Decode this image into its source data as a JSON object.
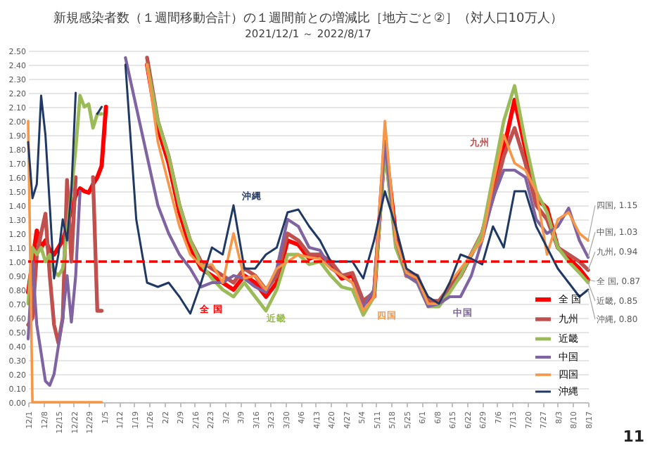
{
  "chart_data": {
    "type": "line",
    "title": "新規感染者数（１週間移動合計）の１週間前との増減比［地方ごと②］（対人口10万人）",
    "subtitle": "2021/12/1 ～ 2022/8/17",
    "x": [
      "2021-12-01",
      "2021-12-03",
      "2021-12-05",
      "2021-12-07",
      "2021-12-09",
      "2021-12-11",
      "2021-12-13",
      "2021-12-15",
      "2021-12-17",
      "2021-12-19",
      "2021-12-21",
      "2021-12-23",
      "2021-12-25",
      "2021-12-27",
      "2021-12-29",
      "2021-12-31",
      "2022-01-02",
      "2022-01-04",
      "2022-01-06",
      "2022-01-08",
      "2022-01-10",
      "2022-01-15",
      "2022-01-20",
      "2022-01-25",
      "2022-01-30",
      "2022-02-04",
      "2022-02-09",
      "2022-02-14",
      "2022-02-19",
      "2022-02-24",
      "2022-03-01",
      "2022-03-06",
      "2022-03-11",
      "2022-03-16",
      "2022-03-21",
      "2022-03-26",
      "2022-03-31",
      "2022-04-05",
      "2022-04-10",
      "2022-04-15",
      "2022-04-20",
      "2022-04-25",
      "2022-04-30",
      "2022-05-05",
      "2022-05-10",
      "2022-05-15",
      "2022-05-20",
      "2022-05-25",
      "2022-05-30",
      "2022-06-04",
      "2022-06-09",
      "2022-06-14",
      "2022-06-19",
      "2022-06-24",
      "2022-06-29",
      "2022-07-04",
      "2022-07-09",
      "2022-07-14",
      "2022-07-19",
      "2022-07-24",
      "2022-07-29",
      "2022-08-03",
      "2022-08-08",
      "2022-08-13",
      "2022-08-17"
    ],
    "series": [
      {
        "name": "全 国",
        "color": "#ff0000",
        "values": [
          0.78,
          1.0,
          1.22,
          1.1,
          1.15,
          1.08,
          1.05,
          1.1,
          1.15,
          1.25,
          1.38,
          1.47,
          1.52,
          1.5,
          1.49,
          1.55,
          1.6,
          1.68,
          2.1,
          null,
          null,
          null,
          null,
          2.4,
          1.95,
          1.7,
          1.35,
          1.1,
          0.95,
          0.9,
          0.85,
          0.8,
          0.9,
          0.85,
          0.75,
          0.85,
          1.15,
          1.12,
          1.02,
          1.05,
          0.98,
          0.88,
          0.9,
          0.7,
          0.75,
          1.85,
          1.2,
          0.9,
          0.88,
          0.7,
          0.7,
          0.8,
          0.9,
          1.05,
          1.2,
          1.5,
          1.8,
          2.15,
          1.8,
          1.45,
          1.38,
          1.1,
          1.02,
          0.95,
          0.87
        ]
      },
      {
        "name": "九州",
        "color": "#c0504d",
        "values": [
          0.55,
          0.6,
          1.05,
          1.2,
          1.34,
          0.9,
          0.55,
          0.42,
          0.6,
          1.58,
          1.0,
          1.6,
          null,
          null,
          null,
          1.6,
          0.65,
          0.65,
          null,
          null,
          null,
          null,
          null,
          2.45,
          2.0,
          1.75,
          1.4,
          1.15,
          1.0,
          0.95,
          0.9,
          0.85,
          0.95,
          0.9,
          0.8,
          0.9,
          1.2,
          1.15,
          1.05,
          1.05,
          1.0,
          0.9,
          0.92,
          0.72,
          0.78,
          1.8,
          1.15,
          0.92,
          0.9,
          0.72,
          0.72,
          0.82,
          0.92,
          1.05,
          1.2,
          1.45,
          1.75,
          1.95,
          1.7,
          1.4,
          1.3,
          1.1,
          1.05,
          1.0,
          0.94
        ]
      },
      {
        "name": "近畿",
        "color": "#9bbb59",
        "values": [
          0.7,
          1.1,
          1.05,
          1.1,
          1.0,
          1.05,
          0.93,
          0.9,
          0.95,
          1.2,
          1.5,
          1.8,
          2.18,
          2.1,
          2.12,
          1.95,
          2.05,
          2.05,
          null,
          null,
          null,
          null,
          null,
          2.4,
          2.0,
          1.75,
          1.4,
          1.15,
          0.98,
          0.88,
          0.8,
          0.75,
          0.85,
          0.75,
          0.65,
          0.8,
          1.05,
          1.05,
          0.98,
          1.0,
          0.9,
          0.82,
          0.8,
          0.62,
          0.75,
          1.8,
          1.1,
          0.9,
          0.85,
          0.68,
          0.68,
          0.78,
          0.9,
          1.05,
          1.2,
          1.6,
          2.0,
          2.25,
          1.85,
          1.5,
          1.35,
          1.1,
          1.0,
          0.92,
          0.85
        ]
      },
      {
        "name": "中国",
        "color": "#8064a2",
        "values": [
          0.45,
          1.0,
          0.55,
          0.35,
          0.15,
          0.12,
          0.2,
          0.4,
          0.6,
          0.9,
          0.57,
          0.9,
          1.5,
          null,
          null,
          null,
          null,
          null,
          null,
          null,
          null,
          2.45,
          2.1,
          1.75,
          1.4,
          1.2,
          1.05,
          0.95,
          0.82,
          0.85,
          0.85,
          0.9,
          0.88,
          0.82,
          0.78,
          0.95,
          1.3,
          1.25,
          1.1,
          1.08,
          0.95,
          0.9,
          0.85,
          0.68,
          0.8,
          1.85,
          1.15,
          0.9,
          0.85,
          0.68,
          0.7,
          0.75,
          0.75,
          0.9,
          1.15,
          1.45,
          1.65,
          1.65,
          1.6,
          1.3,
          1.2,
          1.25,
          1.38,
          1.15,
          1.03
        ]
      },
      {
        "name": "四国",
        "color": "#f79646",
        "values": [
          2.0,
          0,
          0,
          0,
          0,
          0,
          0,
          0,
          0,
          0,
          0,
          0,
          0,
          0,
          0,
          0,
          0,
          0,
          null,
          null,
          null,
          null,
          null,
          2.4,
          1.85,
          1.55,
          1.25,
          1.05,
          0.97,
          0.98,
          0.85,
          1.2,
          0.88,
          0.9,
          0.8,
          0.95,
          1.0,
          1.05,
          1.03,
          1.02,
          0.95,
          0.9,
          0.85,
          0.65,
          0.75,
          2.0,
          1.15,
          0.92,
          0.88,
          0.7,
          0.7,
          0.85,
          0.95,
          1.05,
          1.15,
          1.55,
          1.9,
          1.7,
          1.65,
          1.5,
          1.05,
          1.3,
          1.35,
          1.2,
          1.15
        ]
      },
      {
        "name": "沖縄",
        "color": "#1f3864",
        "values": [
          1.85,
          1.45,
          1.55,
          2.18,
          1.9,
          1.4,
          0.88,
          1.05,
          1.3,
          1.15,
          1.5,
          2.2,
          null,
          null,
          null,
          null,
          2.05,
          2.1,
          null,
          null,
          null,
          2.4,
          1.3,
          0.85,
          0.82,
          0.85,
          0.75,
          0.63,
          0.85,
          1.1,
          1.05,
          1.4,
          0.95,
          0.95,
          1.05,
          1.1,
          1.35,
          1.37,
          1.25,
          1.15,
          1.0,
          1.0,
          1.0,
          0.88,
          1.15,
          1.5,
          1.25,
          0.95,
          0.9,
          0.75,
          0.7,
          0.85,
          1.05,
          1.02,
          0.98,
          1.25,
          1.1,
          1.5,
          1.5,
          1.25,
          1.1,
          0.95,
          0.85,
          0.75,
          0.8
        ]
      }
    ],
    "xlim": [
      "2021-12-01",
      "2022-08-17"
    ],
    "ylim": [
      0,
      2.5
    ],
    "xticks": [
      {
        "value": "2021-12-01",
        "label": "12/1"
      },
      {
        "value": "2021-12-08",
        "label": "12/8"
      },
      {
        "value": "2021-12-15",
        "label": "12/15"
      },
      {
        "value": "2021-12-22",
        "label": "12/22"
      },
      {
        "value": "2021-12-29",
        "label": "12/29"
      },
      {
        "value": "2022-01-05",
        "label": "1/5"
      },
      {
        "value": "2022-01-12",
        "label": "1/12"
      },
      {
        "value": "2022-01-19",
        "label": "1/19"
      },
      {
        "value": "2022-01-26",
        "label": "1/26"
      },
      {
        "value": "2022-02-02",
        "label": "2/2"
      },
      {
        "value": "2022-02-09",
        "label": "2/9"
      },
      {
        "value": "2022-02-16",
        "label": "2/16"
      },
      {
        "value": "2022-02-23",
        "label": "2/23"
      },
      {
        "value": "2022-03-02",
        "label": "3/2"
      },
      {
        "value": "2022-03-09",
        "label": "3/9"
      },
      {
        "value": "2022-03-16",
        "label": "3/16"
      },
      {
        "value": "2022-03-23",
        "label": "3/23"
      },
      {
        "value": "2022-03-30",
        "label": "3/30"
      },
      {
        "value": "2022-04-06",
        "label": "4/6"
      },
      {
        "value": "2022-04-13",
        "label": "4/13"
      },
      {
        "value": "2022-04-20",
        "label": "4/20"
      },
      {
        "value": "2022-04-27",
        "label": "4/27"
      },
      {
        "value": "2022-05-04",
        "label": "5/4"
      },
      {
        "value": "2022-05-11",
        "label": "5/11"
      },
      {
        "value": "2022-05-18",
        "label": "5/18"
      },
      {
        "value": "2022-05-25",
        "label": "5/25"
      },
      {
        "value": "2022-06-01",
        "label": "6/1"
      },
      {
        "value": "2022-06-08",
        "label": "6/8"
      },
      {
        "value": "2022-06-15",
        "label": "6/15"
      },
      {
        "value": "2022-06-22",
        "label": "6/22"
      },
      {
        "value": "2022-06-29",
        "label": "6/29"
      },
      {
        "value": "2022-07-06",
        "label": "7/6"
      },
      {
        "value": "2022-07-13",
        "label": "7/13"
      },
      {
        "value": "2022-07-20",
        "label": "7/20"
      },
      {
        "value": "2022-07-27",
        "label": "7/27"
      },
      {
        "value": "2022-08-03",
        "label": "8/3"
      },
      {
        "value": "2022-08-10",
        "label": "8/10"
      },
      {
        "value": "2022-08-17",
        "label": "8/17"
      }
    ],
    "yticks": [
      {
        "value": 0,
        "label": "0.00"
      },
      {
        "value": 0.1,
        "label": "0.10"
      },
      {
        "value": 0.2,
        "label": "0.20"
      },
      {
        "value": 0.3,
        "label": "0.30"
      },
      {
        "value": 0.4,
        "label": "0.40"
      },
      {
        "value": 0.5,
        "label": "0.50"
      },
      {
        "value": 0.6,
        "label": "0.60"
      },
      {
        "value": 0.7,
        "label": "0.70"
      },
      {
        "value": 0.8,
        "label": "0.80"
      },
      {
        "value": 0.9,
        "label": "0.90"
      },
      {
        "value": 1.0,
        "label": "1.00"
      },
      {
        "value": 1.1,
        "label": "1.10"
      },
      {
        "value": 1.2,
        "label": "1.20"
      },
      {
        "value": 1.3,
        "label": "1.30"
      },
      {
        "value": 1.4,
        "label": "1.40"
      },
      {
        "value": 1.5,
        "label": "1.50"
      },
      {
        "value": 1.6,
        "label": "1.60"
      },
      {
        "value": 1.7,
        "label": "1.70"
      },
      {
        "value": 1.8,
        "label": "1.80"
      },
      {
        "value": 1.9,
        "label": "1.90"
      },
      {
        "value": 2.0,
        "label": "2.00"
      },
      {
        "value": 2.1,
        "label": "2.10"
      },
      {
        "value": 2.2,
        "label": "2.20"
      },
      {
        "value": 2.3,
        "label": "2.30"
      },
      {
        "value": 2.4,
        "label": "2.40"
      },
      {
        "value": 2.5,
        "label": "2.50"
      }
    ],
    "ref_lines": [
      {
        "axis": "y",
        "value": 1.0,
        "color": "#ff0000",
        "line_style": "dashed"
      }
    ],
    "grid": "y",
    "legend": "bottom right",
    "marker": "none",
    "line_style": "solid",
    "annotations": [
      "九州",
      "沖縄",
      "全 国",
      "近畿",
      "四国",
      "中国",
      {
        "text": "四国, 1.15",
        "x": "2022-08-17",
        "y": 1.15
      },
      {
        "text": "中国, 1.03",
        "x": "2022-08-17",
        "y": 1.03
      },
      {
        "text": "九州, 0.94",
        "x": "2022-08-17",
        "y": 0.94
      },
      {
        "text": "全 国, 0.87",
        "x": "2022-08-17",
        "y": 0.87
      },
      {
        "text": "近畿, 0.85",
        "x": "2022-08-17",
        "y": 0.85
      },
      {
        "text": "沖縄, 0.80",
        "x": "2022-08-17",
        "y": 0.8
      },
      "11"
    ]
  }
}
